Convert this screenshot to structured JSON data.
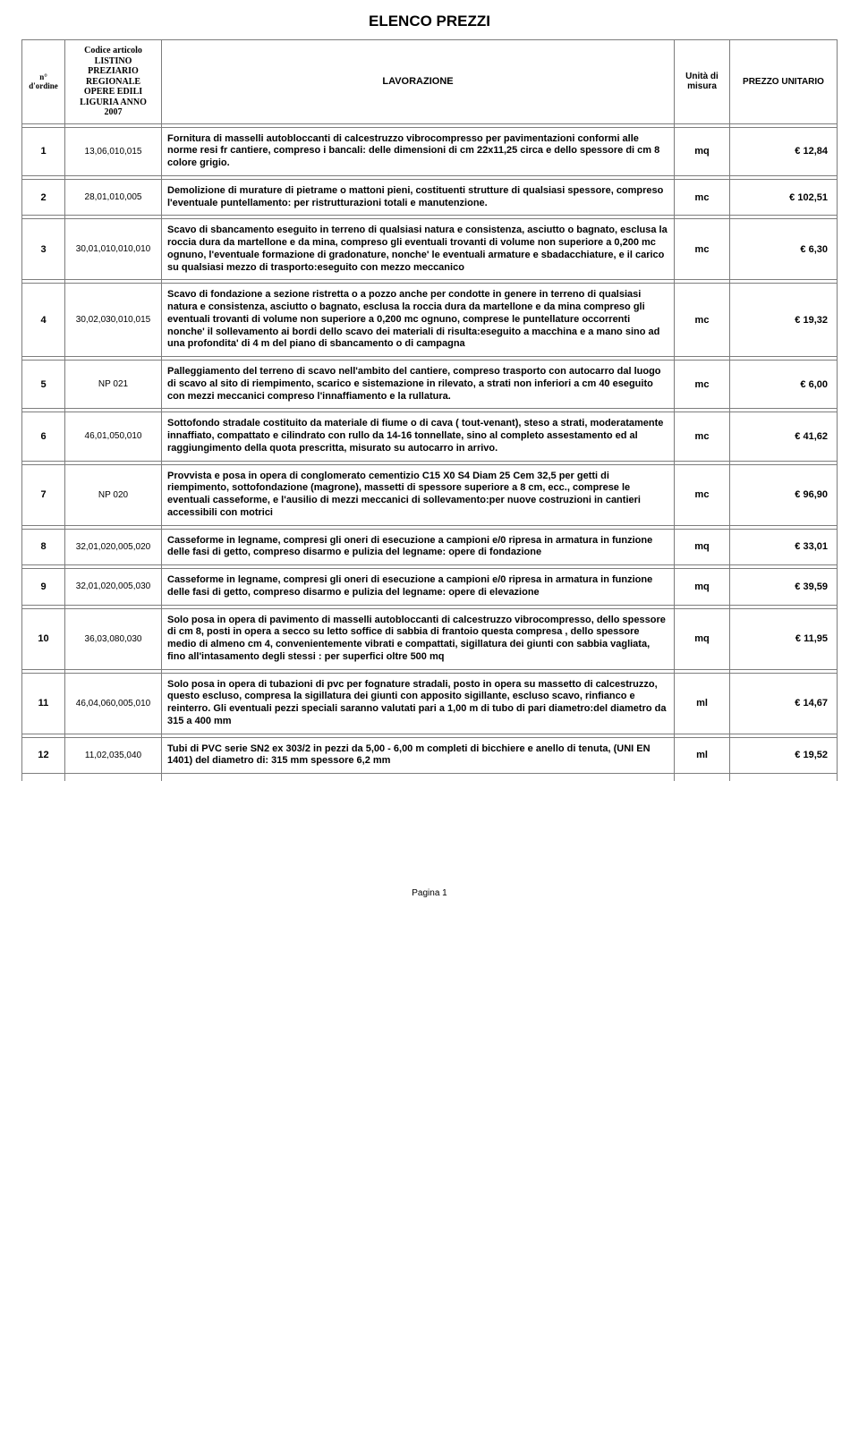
{
  "title": "ELENCO PREZZI",
  "header": {
    "order": "n° d'ordine",
    "code": "Codice articolo LISTINO PREZIARIO REGIONALE OPERE EDILI LIGURIA ANNO 2007",
    "work": "LAVORAZIONE",
    "unit": "Unità di misura",
    "price": "PREZZO UNITARIO"
  },
  "rows": [
    {
      "n": "1",
      "code": "13,06,010,015",
      "work": "Fornitura di masselli autobloccanti di calcestruzzo vibrocompresso per pavimentazioni conformi alle norme resi fr cantiere, compreso i bancali: delle dimensioni di cm 22x11,25 circa e dello spessore di cm 8 colore grigio.",
      "unit": "mq",
      "price": "€ 12,84"
    },
    {
      "n": "2",
      "code": "28,01,010,005",
      "work": "Demolizione di murature di pietrame o mattoni pieni, costituenti strutture di qualsiasi spessore, compreso l'eventuale puntellamento: per ristrutturazioni totali e manutenzione.",
      "unit": "mc",
      "price": "€ 102,51"
    },
    {
      "n": "3",
      "code": "30,01,010,010,010",
      "work": "Scavo di sbancamento eseguito in terreno di  qualsiasi  natura e consistenza,  asciutto o  bagnato, esclusa  la  roccia dura da martellone e da  mina, compreso  gli  eventuali trovanti  di  volume  non superiore  a 0,200 mc ognuno,  l'eventuale  formazione  di gradonature,  nonche' le eventuali armature e sbadacchiature, e il carico su qualsiasi mezzo di trasporto:eseguito con mezzo meccanico",
      "unit": "mc",
      "price": "€ 6,30"
    },
    {
      "n": "4",
      "code": "30,02,030,010,015",
      "work": "Scavo di fondazione a sezione ristretta o a pozzo anche  per condotte in genere in terreno di  qualsiasi natura e consistenza,  asciutto o  bagnato, esclusa  la  roccia dura da martellone e  da  mina compreso gli  eventuali  trovanti di  volume  non superiore a  0,200 mc ognuno,  comprese le puntellature occorrenti nonche' il sollevamento ai  bordi dello scavo dei materiali di risulta:eseguito a macchina e a mano sino ad una profondita' di 4 m del piano di sbancamento o di campagna",
      "unit": "mc",
      "price": "€ 19,32"
    },
    {
      "n": "5",
      "code": "NP 021",
      "work": "Palleggiamento del terreno di scavo nell'ambito del cantiere, compreso trasporto con autocarro dal luogo di scavo al sito di riempimento, scarico e sistemazione in rilevato, a strati non inferiori a cm 40 eseguito con mezzi meccanici compreso l'innaffiamento e la rullatura.",
      "unit": "mc",
      "price": "€ 6,00"
    },
    {
      "n": "6",
      "code": "46,01,050,010",
      "work": "Sottofondo stradale costituito da materiale di fiume o di cava ( tout-venant), steso a strati, moderatamente innaffiato, compattato e cilindrato con rullo da 14-16 tonnellate, sino al completo assestamento ed al raggiungimento della quota prescritta, misurato su autocarro in arrivo.",
      "unit": "mc",
      "price": "€ 41,62"
    },
    {
      "n": "7",
      "code": "NP 020",
      "work": "Provvista e posa in opera di  conglomerato cementizio  C15 X0 S4 Diam 25 Cem 32,5  per getti  di riempimento,  sottofondazione (magrone), massetti di spessore superiore  a   8 cm,  ecc., comprese le eventuali casseforme,  e  l'ausilio di mezzi meccanici di sollevamento:per nuove costruzioni in cantieri accessibili con motrici",
      "unit": "mc",
      "price": "€ 96,90"
    },
    {
      "n": "8",
      "code": "32,01,020,005,020",
      "work": "Casseforme in legname, compresi gli oneri di esecuzione a campioni e/0 ripresa in armatura in funzione delle fasi di getto, compreso disarmo e pulizia del legname: opere di fondazione",
      "unit": "mq",
      "price": "€ 33,01"
    },
    {
      "n": "9",
      "code": "32,01,020,005,030",
      "work": "Casseforme in legname, compresi gli oneri di esecuzione a campioni e/0 ripresa in armatura in funzione delle fasi di getto, compreso disarmo e pulizia del legname: opere di elevazione",
      "unit": "mq",
      "price": "€ 39,59"
    },
    {
      "n": "10",
      "code": "36,03,080,030",
      "work": "Solo posa in opera di pavimento di masselli autobloccanti di calcestruzzo vibrocompresso, dello spessore di cm 8, posti in opera a secco su letto soffice di sabbia di frantoio questa compresa , dello spessore medio di almeno cm 4, convenientemente vibrati e compattati, sigillatura dei giunti con sabbia vagliata, fino all'intasamento degli stessi : per superfici oltre 500 mq",
      "unit": "mq",
      "price": "€ 11,95"
    },
    {
      "n": "11",
      "code": "46,04,060,005,010",
      "work": "Solo posa in opera di tubazioni di pvc per fognature stradali, posto in opera su massetto di calcestruzzo, questo escluso, compresa la sigillatura dei giunti con apposito sigillante, escluso scavo, rinfianco e reinterro. Gli eventuali pezzi speciali saranno valutati pari a 1,00 m di tubo di pari diametro:del diametro da 315 a 400 mm",
      "unit": "ml",
      "price": "€ 14,67"
    },
    {
      "n": "12",
      "code": "11,02,035,040",
      "work": "Tubi di PVC serie SN2 ex  303/2 in pezzi da 5,00  - 6,00 m completi di bicchiere e anello di tenuta, (UNI EN 1401) del diametro di: 315 mm spessore 6,2 mm",
      "unit": "ml",
      "price": "€ 19,52"
    }
  ],
  "footer": "Pagina 1",
  "colors": {
    "border": "#7d7d7d",
    "text": "#000000",
    "bg": "#ffffff"
  }
}
